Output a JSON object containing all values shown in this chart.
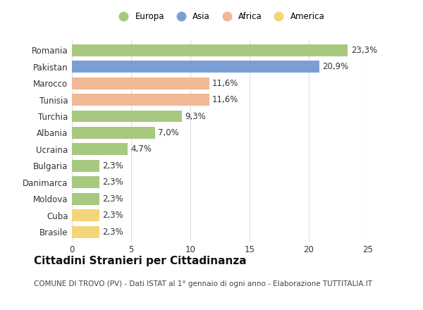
{
  "categories": [
    "Brasile",
    "Cuba",
    "Moldova",
    "Danimarca",
    "Bulgaria",
    "Ucraina",
    "Albania",
    "Turchia",
    "Tunisia",
    "Marocco",
    "Pakistan",
    "Romania"
  ],
  "values": [
    2.3,
    2.3,
    2.3,
    2.3,
    2.3,
    4.7,
    7.0,
    9.3,
    11.6,
    11.6,
    20.9,
    23.3
  ],
  "labels": [
    "2,3%",
    "2,3%",
    "2,3%",
    "2,3%",
    "2,3%",
    "4,7%",
    "7,0%",
    "9,3%",
    "11,6%",
    "11,6%",
    "20,9%",
    "23,3%"
  ],
  "colors": [
    "#f5d57a",
    "#f5d57a",
    "#a8c880",
    "#a8c880",
    "#a8c880",
    "#a8c880",
    "#a8c880",
    "#a8c880",
    "#f0b894",
    "#f0b894",
    "#7b9fd4",
    "#a8c880"
  ],
  "legend_labels": [
    "Europa",
    "Asia",
    "Africa",
    "America"
  ],
  "legend_colors": [
    "#a8c880",
    "#7b9fd4",
    "#f0b894",
    "#f5d57a"
  ],
  "title": "Cittadini Stranieri per Cittadinanza",
  "subtitle": "COMUNE DI TROVO (PV) - Dati ISTAT al 1° gennaio di ogni anno - Elaborazione TUTTITALIA.IT",
  "xlim": [
    0,
    25
  ],
  "xticks": [
    0,
    5,
    10,
    15,
    20,
    25
  ],
  "background_color": "#ffffff",
  "grid_color": "#dddddd",
  "bar_height": 0.72,
  "label_fontsize": 8.5,
  "tick_fontsize": 8.5,
  "title_fontsize": 11,
  "subtitle_fontsize": 7.5
}
